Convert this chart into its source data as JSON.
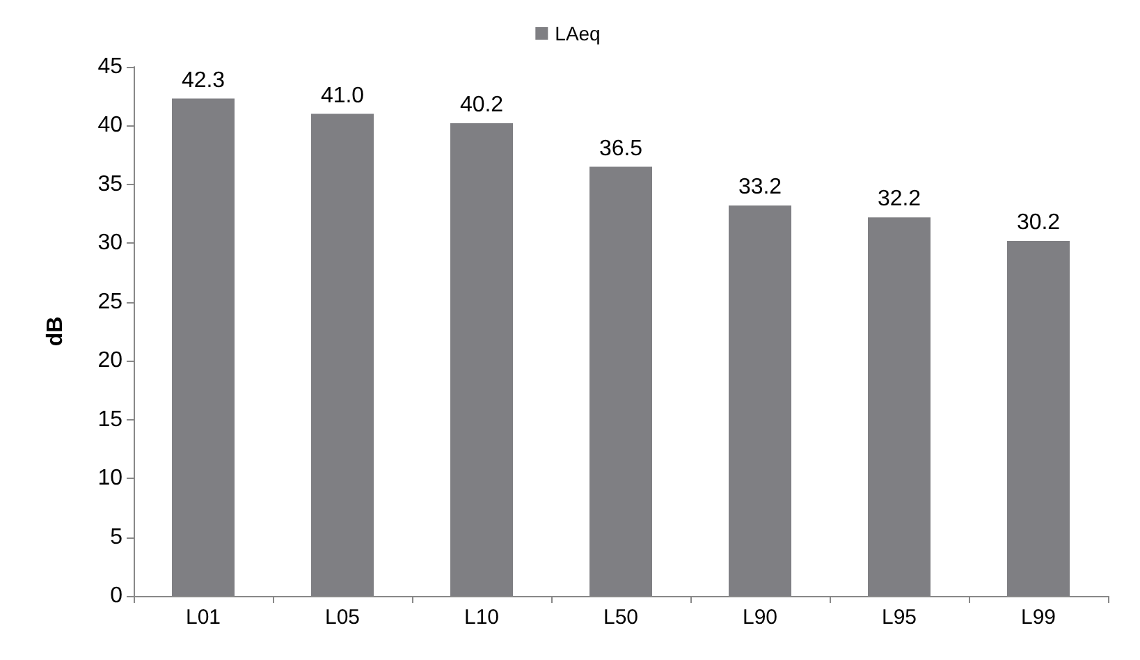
{
  "chart_data": {
    "type": "bar",
    "ylabel": "dB",
    "categories": [
      "L01",
      "L05",
      "L10",
      "L50",
      "L90",
      "L95",
      "L99"
    ],
    "series": [
      {
        "name": "LAeq",
        "color": "#7f7f83",
        "values": [
          42.3,
          41.0,
          40.2,
          36.5,
          33.2,
          32.2,
          30.2
        ],
        "value_labels": [
          "42.3",
          "41.0",
          "40.2",
          "36.5",
          "33.2",
          "32.2",
          "30.2"
        ]
      }
    ],
    "ylim": [
      0,
      45
    ],
    "yticks": [
      0,
      5,
      10,
      15,
      20,
      25,
      30,
      35,
      40,
      45
    ],
    "grid": false,
    "legend": "top"
  }
}
